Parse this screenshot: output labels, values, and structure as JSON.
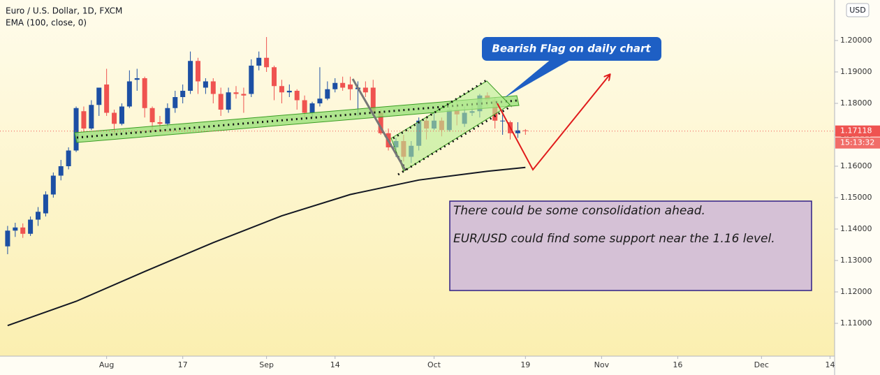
{
  "chart_data": {
    "type": "candlestick",
    "title": "Euro / U.S. Dollar, 1D, FXCM",
    "indicator": "EMA (100, close, 0)",
    "currency": "USD",
    "countdown": "15:13:32",
    "up_color": "#1c4fa4",
    "down_color": "#ef5350",
    "open": [
      1.1345,
      1.1395,
      1.1405,
      1.1385,
      1.143,
      1.145,
      1.151,
      1.157,
      1.16,
      1.165,
      1.1775,
      1.172,
      1.1795,
      1.186,
      1.177,
      1.1735,
      1.179,
      1.1875,
      1.188,
      1.1785,
      1.174,
      1.1735,
      1.1785,
      1.182,
      1.184,
      1.1935,
      1.185,
      1.187,
      1.183,
      1.178,
      1.1835,
      1.183,
      1.183,
      1.192,
      1.1945,
      1.1915,
      1.1855,
      1.1835,
      1.184,
      1.181,
      1.177,
      1.18,
      1.1815,
      1.1845,
      1.1865,
      1.186,
      1.1845,
      1.185,
      1.185,
      1.177,
      1.1705,
      1.166,
      1.168,
      1.163,
      1.1665,
      1.1745,
      1.172,
      1.1745,
      1.1715,
      1.178,
      1.1735,
      1.177,
      1.1775,
      1.1825,
      1.181,
      1.1745,
      1.174,
      1.1705,
      1.1714
    ],
    "high": [
      1.141,
      1.142,
      1.1418,
      1.144,
      1.147,
      1.152,
      1.158,
      1.162,
      1.166,
      1.179,
      1.179,
      1.181,
      1.185,
      1.191,
      1.178,
      1.18,
      1.1905,
      1.191,
      1.1885,
      1.179,
      1.176,
      1.18,
      1.184,
      1.186,
      1.1965,
      1.1945,
      1.188,
      1.188,
      1.185,
      1.185,
      1.1855,
      1.185,
      1.194,
      1.1965,
      1.2011,
      1.192,
      1.1875,
      1.186,
      1.1845,
      1.1825,
      1.1805,
      1.1915,
      1.187,
      1.188,
      1.1885,
      1.1885,
      1.187,
      1.187,
      1.1875,
      1.178,
      1.172,
      1.169,
      1.17,
      1.168,
      1.1755,
      1.1755,
      1.177,
      1.1755,
      1.179,
      1.1805,
      1.179,
      1.1795,
      1.183,
      1.1835,
      1.182,
      1.1765,
      1.1745,
      1.174,
      1.1718
    ],
    "low": [
      1.132,
      1.1375,
      1.1372,
      1.1378,
      1.141,
      1.144,
      1.15,
      1.1555,
      1.159,
      1.1645,
      1.171,
      1.1715,
      1.176,
      1.176,
      1.17,
      1.173,
      1.1785,
      1.184,
      1.1755,
      1.171,
      1.171,
      1.1725,
      1.177,
      1.18,
      1.183,
      1.183,
      1.183,
      1.18,
      1.176,
      1.177,
      1.1815,
      1.177,
      1.182,
      1.1905,
      1.19,
      1.181,
      1.18,
      1.182,
      1.178,
      1.1755,
      1.1755,
      1.179,
      1.181,
      1.1835,
      1.184,
      1.181,
      1.176,
      1.182,
      1.176,
      1.17,
      1.165,
      1.163,
      1.1615,
      1.161,
      1.165,
      1.1685,
      1.1715,
      1.1695,
      1.171,
      1.173,
      1.1725,
      1.176,
      1.1755,
      1.179,
      1.172,
      1.17,
      1.1685,
      1.169,
      1.17
    ],
    "close": [
      1.1395,
      1.1405,
      1.1385,
      1.143,
      1.1455,
      1.151,
      1.157,
      1.16,
      1.165,
      1.1785,
      1.172,
      1.1795,
      1.185,
      1.177,
      1.1735,
      1.179,
      1.187,
      1.188,
      1.1785,
      1.174,
      1.1735,
      1.1785,
      1.182,
      1.184,
      1.1935,
      1.187,
      1.187,
      1.183,
      1.178,
      1.1835,
      1.183,
      1.1825,
      1.192,
      1.1945,
      1.1915,
      1.1855,
      1.1835,
      1.184,
      1.181,
      1.177,
      1.18,
      1.1815,
      1.1845,
      1.1865,
      1.185,
      1.1845,
      1.185,
      1.1835,
      1.177,
      1.1705,
      1.166,
      1.168,
      1.163,
      1.1665,
      1.1745,
      1.172,
      1.1745,
      1.1715,
      1.178,
      1.1765,
      1.177,
      1.1775,
      1.1825,
      1.181,
      1.1745,
      1.1745,
      1.1705,
      1.1714,
      1.17118
    ],
    "ema": {
      "color": "#131722",
      "x": [
        0,
        9,
        18,
        27,
        36,
        45,
        54,
        63,
        68
      ],
      "values": [
        1.1093,
        1.117,
        1.1265,
        1.1357,
        1.1442,
        1.151,
        1.1556,
        1.1584,
        1.1596
      ]
    },
    "xlim": [
      -1,
      108.6
    ],
    "xticks": [
      {
        "value": 13,
        "label": "Aug"
      },
      {
        "value": 23,
        "label": "17"
      },
      {
        "value": 34,
        "label": "Sep"
      },
      {
        "value": 43,
        "label": "14"
      },
      {
        "value": 56,
        "label": "Oct"
      },
      {
        "value": 68,
        "label": "19"
      },
      {
        "value": 78,
        "label": "Nov"
      },
      {
        "value": 88,
        "label": "16"
      },
      {
        "value": 99,
        "label": "Dec"
      },
      {
        "value": 108,
        "label": "14"
      }
    ],
    "ylim": [
      1.09956,
      1.21289
    ],
    "yticks": [
      {
        "value": 1.11,
        "label": "1.11000"
      },
      {
        "value": 1.12,
        "label": "1.12000"
      },
      {
        "value": 1.13,
        "label": "1.13000"
      },
      {
        "value": 1.14,
        "label": "1.14000"
      },
      {
        "value": 1.15,
        "label": "1.15000"
      },
      {
        "value": 1.16,
        "label": "1.16000"
      },
      {
        "value": 1.17,
        "label": "1.17000"
      },
      {
        "value": 1.18,
        "label": "1.18000"
      },
      {
        "value": 1.19,
        "label": "1.19000"
      },
      {
        "value": 1.2,
        "label": "1.20000"
      }
    ],
    "annotations": [
      "Bearish Flag on daily chart",
      "There could be some consolidation ahead.",
      "EUR/USD could find some support near the 1.16 level."
    ]
  }
}
